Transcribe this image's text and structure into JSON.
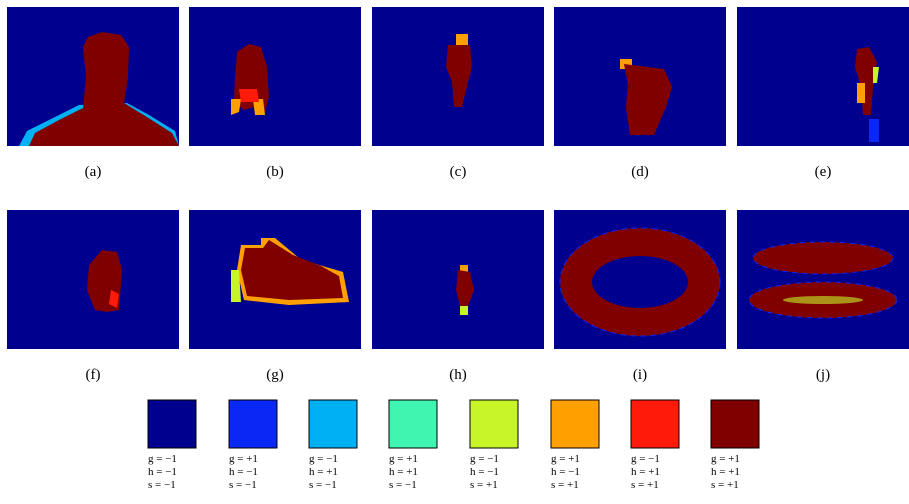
{
  "figure": {
    "panels": [
      {
        "label": "(a)"
      },
      {
        "label": "(b)"
      },
      {
        "label": "(c)"
      },
      {
        "label": "(d)"
      },
      {
        "label": "(e)"
      },
      {
        "label": "(f)"
      },
      {
        "label": "(g)"
      },
      {
        "label": "(h)"
      },
      {
        "label": "(i)"
      },
      {
        "label": "(j)"
      }
    ],
    "legend": [
      {
        "color": "#00008f",
        "lines": [
          "g = −1",
          "h = −1",
          "s = −1"
        ]
      },
      {
        "color": "#0a28f5",
        "lines": [
          "g = +1",
          "h = −1",
          "s = −1"
        ]
      },
      {
        "color": "#00b0f5",
        "lines": [
          "g = −1",
          "h = +1",
          "s = −1"
        ]
      },
      {
        "color": "#40f5b0",
        "lines": [
          "g = +1",
          "h = +1",
          "s = −1"
        ]
      },
      {
        "color": "#c8f528",
        "lines": [
          "g = −1",
          "h = −1",
          "s = +1"
        ]
      },
      {
        "color": "#ffa000",
        "lines": [
          "g = +1",
          "h = −1",
          "s = +1"
        ]
      },
      {
        "color": "#ff1a0a",
        "lines": [
          "g = −1",
          "h = +1",
          "s = +1"
        ]
      },
      {
        "color": "#800000",
        "lines": [
          "g = +1",
          "h = +1",
          "s = +1"
        ]
      }
    ]
  }
}
